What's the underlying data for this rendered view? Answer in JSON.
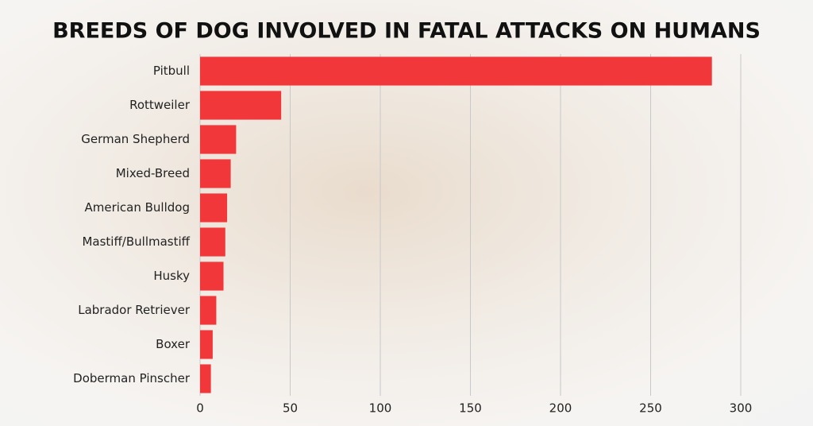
{
  "chart_data": {
    "type": "bar",
    "orientation": "horizontal",
    "title": "BREEDS OF DOG INVOLVED IN FATAL ATTACKS ON HUMANS",
    "categories": [
      "Pitbull",
      "Rottweiler",
      "German Shepherd",
      "Mixed-Breed",
      "American Bulldog",
      "Mastiff/Bullmastiff",
      "Husky",
      "Labrador Retriever",
      "Boxer",
      "Doberman Pinscher"
    ],
    "values": [
      284,
      45,
      20,
      17,
      15,
      14,
      13,
      9,
      7,
      6
    ],
    "color": "#f2373a",
    "xlim": [
      0,
      300
    ],
    "xticks": [
      0,
      50,
      100,
      150,
      200,
      250,
      300
    ],
    "grid": true
  }
}
